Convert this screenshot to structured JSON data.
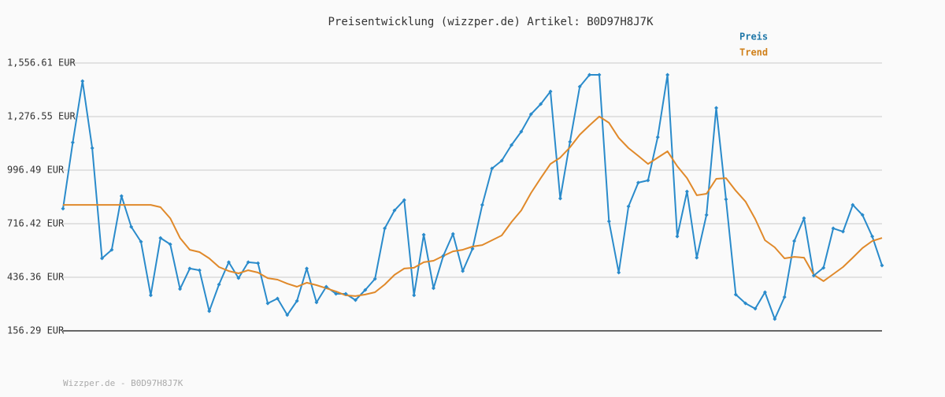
{
  "chart_data": {
    "type": "line",
    "title": "Preisentwicklung (wizzper.de) Artikel: B0D97H8J7K",
    "footer": "Wizzper.de - B0D97H8J7K",
    "ylim": [
      156.29,
      1556.61
    ],
    "yticks": [
      {
        "value": 156.29,
        "label": "156.29 EUR"
      },
      {
        "value": 436.36,
        "label": "436.36 EUR"
      },
      {
        "value": 716.42,
        "label": "716.42 EUR"
      },
      {
        "value": 996.49,
        "label": "996.49 EUR"
      },
      {
        "value": 1276.55,
        "label": "1,276.55 EUR"
      },
      {
        "value": 1556.61,
        "label": "1,556.61 EUR"
      }
    ],
    "grid": true,
    "legend": "top-right",
    "series": [
      {
        "name": "Preis",
        "color": "#2a8bcb",
        "label_color": "#1f77a8",
        "markers": true,
        "values": [
          795,
          1141,
          1462,
          1112,
          535,
          580,
          861,
          700,
          622,
          342,
          642,
          609,
          375,
          482,
          473,
          259,
          399,
          515,
          432,
          515,
          510,
          300,
          325,
          239,
          313,
          482,
          305,
          387,
          350,
          350,
          317,
          370,
          428,
          692,
          786,
          840,
          342,
          659,
          379,
          548,
          663,
          469,
          585,
          815,
          1005,
          1046,
          1128,
          1198,
          1289,
          1342,
          1408,
          848,
          1145,
          1433,
          1495,
          1495,
          729,
          461,
          807,
          931,
          943,
          1169,
          1495,
          650,
          885,
          539,
          762,
          1322,
          844,
          346,
          300,
          272,
          358,
          218,
          333,
          626,
          745,
          445,
          486,
          692,
          675,
          815,
          762,
          650,
          498
        ]
      },
      {
        "name": "Trend",
        "color": "#e0892a",
        "label_color": "#d0801a",
        "markers": false,
        "values": [
          815,
          815,
          815,
          815,
          815,
          815,
          815,
          815,
          815,
          815,
          803,
          745,
          642,
          580,
          568,
          535,
          490,
          469,
          457,
          473,
          461,
          432,
          424,
          403,
          387,
          408,
          395,
          379,
          362,
          342,
          338,
          346,
          358,
          399,
          449,
          482,
          486,
          515,
          523,
          548,
          572,
          580,
          597,
          605,
          630,
          655,
          725,
          786,
          877,
          955,
          1029,
          1062,
          1116,
          1182,
          1231,
          1277,
          1244,
          1165,
          1112,
          1071,
          1029,
          1062,
          1095,
          1017,
          955,
          865,
          873,
          951,
          955,
          889,
          832,
          741,
          630,
          593,
          535,
          543,
          539,
          449,
          416,
          453,
          490,
          539,
          589,
          626,
          642
        ]
      }
    ]
  }
}
